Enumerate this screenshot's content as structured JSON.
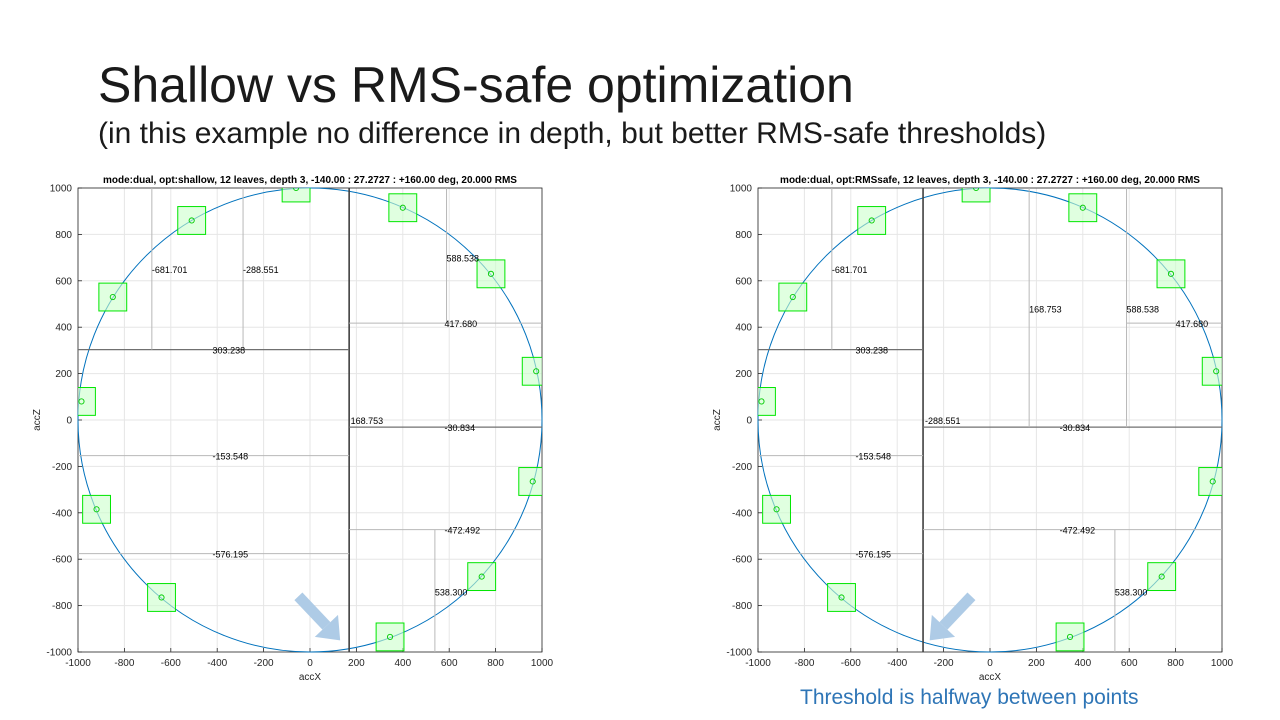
{
  "slide": {
    "title": "Shallow vs RMS-safe optimization",
    "subtitle": "(in this example no difference in depth, but better RMS-safe thresholds)",
    "caption": "Threshold is halfway between points"
  },
  "colors": {
    "circle": "#0072bd",
    "box_fill": "#ccffcc",
    "box_stroke": "#00e600",
    "point": "#00cc00",
    "grid": "#e6e6e6",
    "arrow": "#aecbe6"
  },
  "chart_data": [
    {
      "type": "scatter",
      "title": "mode:dual, opt:shallow, 12 leaves, depth 3, -140.00 : 27.2727 : +160.00 deg, 20.000 RMS",
      "xlabel": "accX",
      "ylabel": "accZ",
      "xlim": [
        -1000,
        1000
      ],
      "ylim": [
        -1000,
        1000
      ],
      "xticks": [
        -1000,
        -800,
        -600,
        -400,
        -200,
        0,
        200,
        400,
        600,
        800,
        1000
      ],
      "yticks": [
        -1000,
        -800,
        -600,
        -400,
        -200,
        0,
        200,
        400,
        600,
        800,
        1000
      ],
      "grid": true,
      "circle_radius": 1000,
      "points": [
        {
          "x": -985,
          "y": 80
        },
        {
          "x": -920,
          "y": -385
        },
        {
          "x": -850,
          "y": 530
        },
        {
          "x": -640,
          "y": -765
        },
        {
          "x": -510,
          "y": 860
        },
        {
          "x": -60,
          "y": 1000
        },
        {
          "x": 345,
          "y": -935
        },
        {
          "x": 400,
          "y": 915
        },
        {
          "x": 740,
          "y": -675
        },
        {
          "x": 780,
          "y": 630
        },
        {
          "x": 960,
          "y": -265
        },
        {
          "x": 975,
          "y": 210
        }
      ],
      "box_half_size": 60,
      "splits": [
        {
          "orient": "v",
          "value": 168.753,
          "from": -1000,
          "to": 1000,
          "level": 1,
          "label": "168.753",
          "lx": 175,
          "ly": 0
        },
        {
          "orient": "h",
          "value": 303.238,
          "from": -1000,
          "to": 168.753,
          "level": 2,
          "label": "303.238",
          "lx": -420,
          "ly": 303.238
        },
        {
          "orient": "h",
          "value": -30.834,
          "from": 168.753,
          "to": 1000,
          "level": 2,
          "label": "-30.834",
          "lx": 580,
          "ly": -30.834
        },
        {
          "orient": "v",
          "value": -681.701,
          "from": 303.238,
          "to": 1000,
          "level": 3,
          "label": "-681.701",
          "lx": -681.701,
          "ly": 650
        },
        {
          "orient": "v",
          "value": -288.551,
          "from": 303.238,
          "to": 1000,
          "level": 3,
          "label": "-288.551",
          "lx": -288.551,
          "ly": 650
        },
        {
          "orient": "h",
          "value": -153.548,
          "from": -1000,
          "to": 168.753,
          "level": 3,
          "label": "-153.548",
          "lx": -420,
          "ly": -153.548
        },
        {
          "orient": "h",
          "value": -576.195,
          "from": -1000,
          "to": 168.753,
          "level": 3,
          "label": "-576.195",
          "lx": -420,
          "ly": -576.195
        },
        {
          "orient": "h",
          "value": 417.68,
          "from": 168.753,
          "to": 1000,
          "level": 3,
          "label": "417.680",
          "lx": 580,
          "ly": 417.68
        },
        {
          "orient": "v",
          "value": 588.538,
          "from": 417.68,
          "to": 1000,
          "level": 3,
          "label": "588.538",
          "lx": 588.538,
          "ly": 700
        },
        {
          "orient": "h",
          "value": -472.492,
          "from": 168.753,
          "to": 1000,
          "level": 3,
          "label": "-472.492",
          "lx": 580,
          "ly": -472.492
        },
        {
          "orient": "v",
          "value": 538.3,
          "from": -1000,
          "to": -472.492,
          "level": 3,
          "label": "538.300",
          "lx": 538.3,
          "ly": -740
        }
      ],
      "arrow": {
        "from": [
          -50,
          -760
        ],
        "to": [
          130,
          -950
        ]
      }
    },
    {
      "type": "scatter",
      "title": "mode:dual, opt:RMSsafe, 12 leaves, depth 3, -140.00 : 27.2727 : +160.00 deg, 20.000 RMS",
      "xlabel": "accX",
      "ylabel": "accZ",
      "xlim": [
        -1000,
        1000
      ],
      "ylim": [
        -1000,
        1000
      ],
      "xticks": [
        -1000,
        -800,
        -600,
        -400,
        -200,
        0,
        200,
        400,
        600,
        800,
        1000
      ],
      "yticks": [
        -1000,
        -800,
        -600,
        -400,
        -200,
        0,
        200,
        400,
        600,
        800,
        1000
      ],
      "grid": true,
      "circle_radius": 1000,
      "points": [
        {
          "x": -985,
          "y": 80
        },
        {
          "x": -920,
          "y": -385
        },
        {
          "x": -850,
          "y": 530
        },
        {
          "x": -640,
          "y": -765
        },
        {
          "x": -510,
          "y": 860
        },
        {
          "x": -60,
          "y": 1000
        },
        {
          "x": 345,
          "y": -935
        },
        {
          "x": 400,
          "y": 915
        },
        {
          "x": 780,
          "y": 630
        },
        {
          "x": 740,
          "y": -675
        },
        {
          "x": 975,
          "y": 210
        },
        {
          "x": 960,
          "y": -265
        }
      ],
      "box_half_size": 60,
      "splits": [
        {
          "orient": "v",
          "value": -288.551,
          "from": -1000,
          "to": 1000,
          "level": 1,
          "label": "-288.551",
          "lx": -280,
          "ly": 0
        },
        {
          "orient": "h",
          "value": 303.238,
          "from": -1000,
          "to": -288.551,
          "level": 2,
          "label": "303.238",
          "lx": -580,
          "ly": 303.238
        },
        {
          "orient": "h",
          "value": -30.834,
          "from": -288.551,
          "to": 1000,
          "level": 2,
          "label": "-30.834",
          "lx": 300,
          "ly": -30.834
        },
        {
          "orient": "v",
          "value": -681.701,
          "from": 303.238,
          "to": 1000,
          "level": 3,
          "label": "-681.701",
          "lx": -681.701,
          "ly": 650
        },
        {
          "orient": "h",
          "value": -153.548,
          "from": -1000,
          "to": -288.551,
          "level": 3,
          "label": "-153.548",
          "lx": -580,
          "ly": -153.548
        },
        {
          "orient": "h",
          "value": -576.195,
          "from": -1000,
          "to": -288.551,
          "level": 3,
          "label": "-576.195",
          "lx": -580,
          "ly": -576.195
        },
        {
          "orient": "v",
          "value": 168.753,
          "from": -30.834,
          "to": 1000,
          "level": 3,
          "label": "168.753",
          "lx": 168.753,
          "ly": 480
        },
        {
          "orient": "v",
          "value": 588.538,
          "from": -30.834,
          "to": 1000,
          "level": 3,
          "label": "588.538",
          "lx": 588.538,
          "ly": 480
        },
        {
          "orient": "h",
          "value": 417.68,
          "from": 588.538,
          "to": 1000,
          "level": 3,
          "label": "417.680",
          "lx": 800,
          "ly": 417.68
        },
        {
          "orient": "h",
          "value": -472.492,
          "from": -288.551,
          "to": 1000,
          "level": 3,
          "label": "-472.492",
          "lx": 300,
          "ly": -472.492
        },
        {
          "orient": "v",
          "value": 538.3,
          "from": -1000,
          "to": -472.492,
          "level": 3,
          "label": "538.300",
          "lx": 538.3,
          "ly": -740
        }
      ],
      "arrow": {
        "from": [
          -80,
          -760
        ],
        "to": [
          -260,
          -950
        ]
      }
    }
  ]
}
